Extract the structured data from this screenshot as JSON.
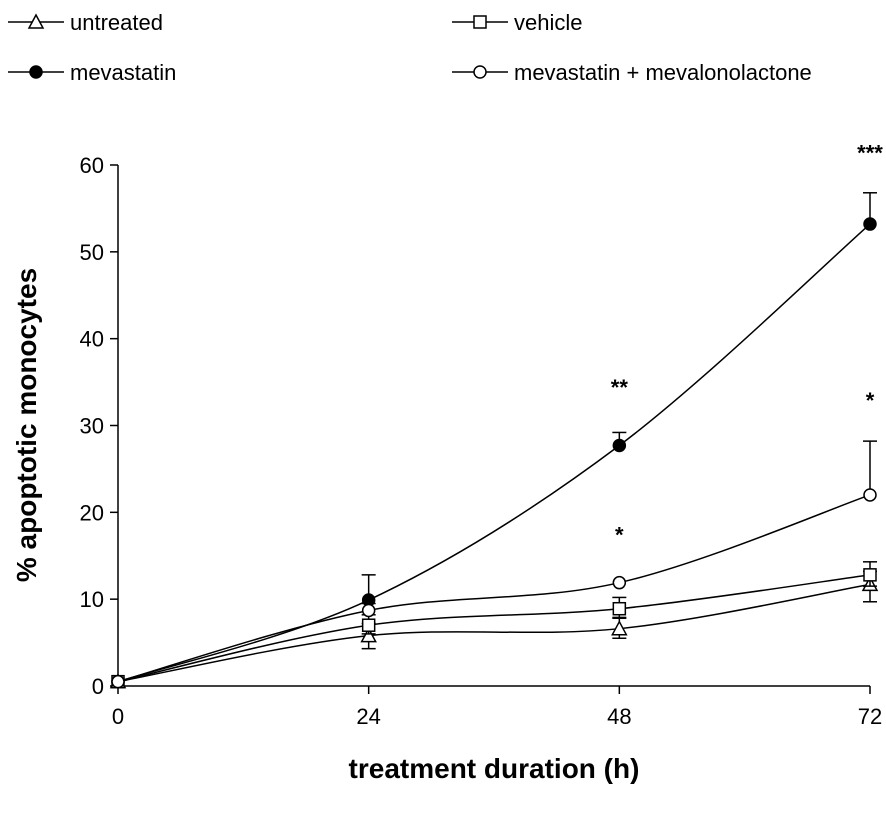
{
  "chart_data": {
    "type": "line",
    "title": "",
    "xlabel": "treatment duration (h)",
    "ylabel": "% apoptotic monocytes",
    "x": [
      0,
      24,
      48,
      72
    ],
    "xlim": [
      0,
      72
    ],
    "ylim": [
      0,
      60
    ],
    "xticks": [
      "0",
      "24",
      "48",
      "72"
    ],
    "yticks": [
      "0",
      "10",
      "20",
      "30",
      "40",
      "50",
      "60"
    ],
    "grid": false,
    "legend_position": "top",
    "series": [
      {
        "name": "untreated",
        "marker": "open-triangle",
        "values": [
          0.5,
          5.8,
          6.6,
          11.7
        ],
        "error_up": [
          0,
          1.4,
          1.2,
          1.5
        ],
        "error_down": [
          0,
          1.5,
          1.1,
          2.0
        ]
      },
      {
        "name": "vehicle",
        "marker": "open-square",
        "values": [
          0.5,
          7.0,
          8.9,
          12.8
        ],
        "error_up": [
          0,
          1.2,
          1.3,
          1.5
        ],
        "error_down": [
          0,
          1.0,
          1.0,
          1.3
        ]
      },
      {
        "name": "mevastatin",
        "marker": "filled-circle",
        "values": [
          0.5,
          9.9,
          27.7,
          53.2
        ],
        "error_up": [
          0,
          2.9,
          1.5,
          3.6
        ],
        "error_down": [
          0,
          0,
          0,
          0
        ]
      },
      {
        "name": "mevastatin + mevalonolactone",
        "marker": "open-circle",
        "values": [
          0.5,
          8.7,
          11.9,
          22.0
        ],
        "error_up": [
          0,
          0.8,
          0,
          6.2
        ],
        "error_down": [
          0,
          0,
          0,
          0
        ]
      }
    ],
    "annotations": [
      {
        "text": "**",
        "x": 48,
        "y": 33.5
      },
      {
        "text": "*",
        "x": 48,
        "y": 16.5
      },
      {
        "text": "***",
        "x": 72,
        "y": 60.5
      },
      {
        "text": "*",
        "x": 72,
        "y": 32.0
      }
    ]
  }
}
